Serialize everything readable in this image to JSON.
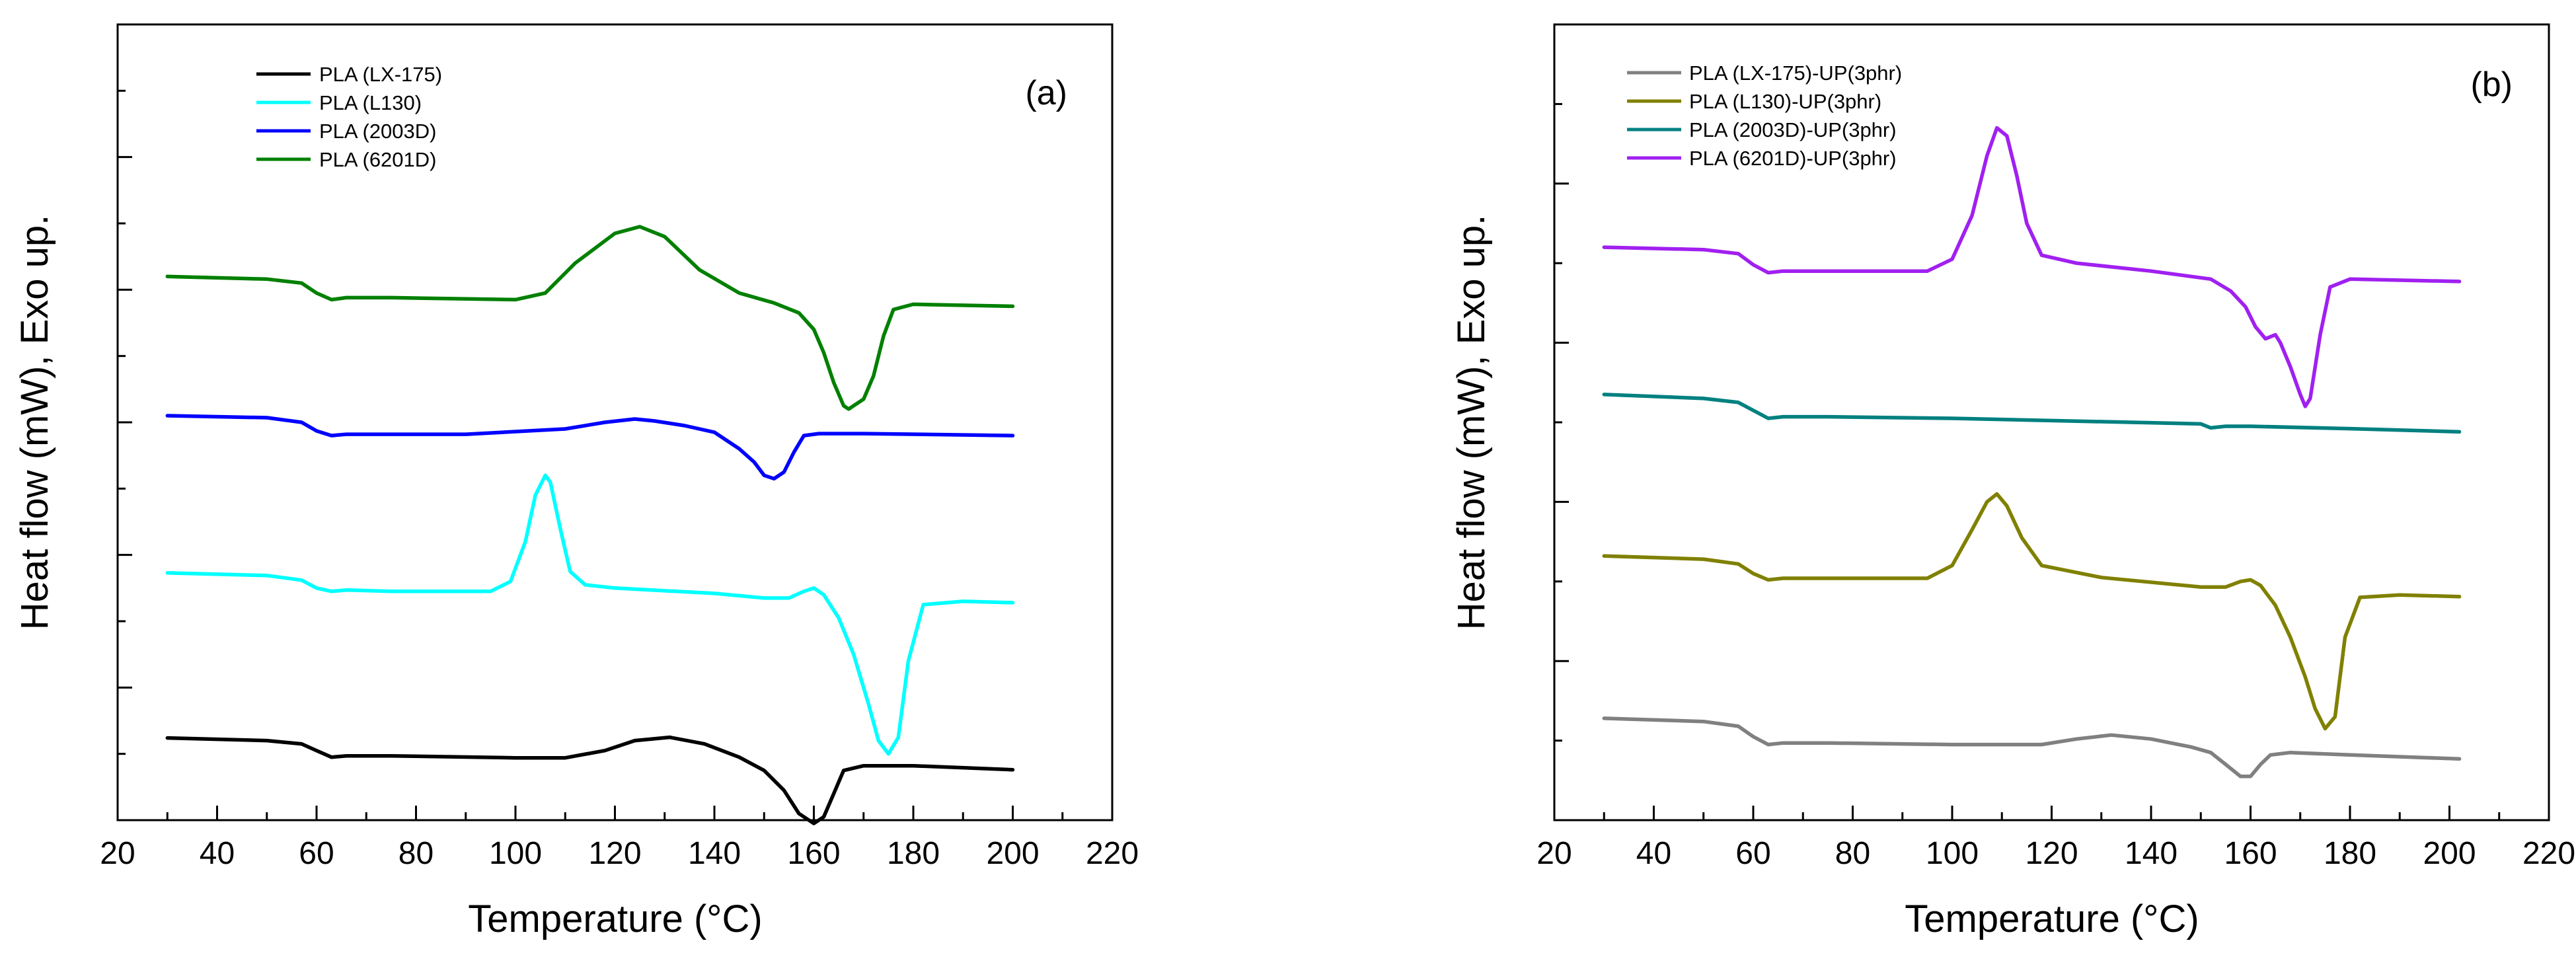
{
  "chart_data": [
    {
      "type": "line",
      "panel_label": "(a)",
      "xlabel": "Temperature (°C)",
      "ylabel": "Heat flow (mW), Exo up.",
      "xlim": [
        20,
        220
      ],
      "xticks": [
        "20",
        "40",
        "60",
        "80",
        "100",
        "120",
        "140",
        "160",
        "180",
        "200",
        "220"
      ],
      "ylim": [
        0,
        12
      ],
      "y_tick_labels": "none",
      "legend_position": "top-left",
      "series": [
        {
          "name": "PLA (LX-175)",
          "color": "#000000",
          "x": [
            30,
            50,
            57,
            60,
            63,
            66,
            75,
            100,
            110,
            118,
            124,
            131,
            138,
            145,
            150,
            154,
            157,
            160,
            162,
            164,
            166,
            170,
            180,
            200
          ],
          "y": [
            1.24,
            1.2,
            1.15,
            1.05,
            0.95,
            0.97,
            0.97,
            0.94,
            0.94,
            1.05,
            1.2,
            1.25,
            1.15,
            0.95,
            0.75,
            0.45,
            0.1,
            -0.05,
            0.05,
            0.4,
            0.75,
            0.82,
            0.82,
            0.76
          ]
        },
        {
          "name": "PLA (L130)",
          "color": "#00FFFF",
          "x": [
            30,
            50,
            57,
            60,
            63,
            66,
            75,
            95,
            99,
            102,
            104,
            106,
            107,
            109,
            111,
            114,
            120,
            140,
            150,
            155,
            158,
            160,
            162,
            165,
            168,
            171,
            173,
            175,
            177,
            179,
            182,
            190,
            200
          ],
          "y": [
            3.73,
            3.69,
            3.62,
            3.5,
            3.45,
            3.47,
            3.45,
            3.45,
            3.6,
            4.2,
            4.9,
            5.2,
            5.1,
            4.4,
            3.75,
            3.55,
            3.5,
            3.42,
            3.35,
            3.35,
            3.45,
            3.5,
            3.4,
            3.05,
            2.5,
            1.75,
            1.2,
            1.0,
            1.25,
            2.4,
            3.25,
            3.3,
            3.28
          ]
        },
        {
          "name": "PLA (2003D)",
          "color": "#0000FF",
          "x": [
            30,
            50,
            57,
            60,
            63,
            66,
            75,
            90,
            110,
            118,
            124,
            128,
            134,
            140,
            145,
            148,
            150,
            152,
            154,
            156,
            158,
            161,
            170,
            200
          ],
          "y": [
            6.1,
            6.07,
            6.0,
            5.87,
            5.8,
            5.82,
            5.82,
            5.82,
            5.9,
            6.0,
            6.05,
            6.02,
            5.95,
            5.85,
            5.6,
            5.4,
            5.2,
            5.15,
            5.25,
            5.55,
            5.8,
            5.83,
            5.83,
            5.8
          ]
        },
        {
          "name": "PLA (6201D)",
          "color": "#008000",
          "x": [
            30,
            50,
            57,
            60,
            63,
            66,
            75,
            100,
            106,
            112,
            120,
            125,
            130,
            137,
            145,
            152,
            157,
            160,
            162,
            164,
            166,
            167,
            168,
            170,
            172,
            174,
            176,
            180,
            200
          ],
          "y": [
            8.2,
            8.16,
            8.1,
            7.95,
            7.85,
            7.88,
            7.88,
            7.85,
            7.95,
            8.4,
            8.85,
            8.95,
            8.8,
            8.3,
            7.95,
            7.8,
            7.65,
            7.4,
            7.05,
            6.6,
            6.25,
            6.2,
            6.25,
            6.35,
            6.7,
            7.3,
            7.7,
            7.78,
            7.75
          ]
        }
      ]
    },
    {
      "type": "line",
      "panel_label": "(b)",
      "xlabel": "Temperature (°C)",
      "ylabel": "Heat flow (mW), Exo up.",
      "xlim": [
        20,
        220
      ],
      "xticks": [
        "20",
        "40",
        "60",
        "80",
        "100",
        "120",
        "140",
        "160",
        "180",
        "200",
        "220"
      ],
      "ylim": [
        0,
        10
      ],
      "y_tick_labels": "none",
      "legend_position": "top-left",
      "series": [
        {
          "name": "PLA (LX-175)-UP(3phr)",
          "color": "#808080",
          "x": [
            30,
            50,
            57,
            60,
            63,
            66,
            75,
            100,
            118,
            125,
            132,
            140,
            148,
            152,
            155,
            158,
            160,
            162,
            164,
            168,
            180,
            202
          ],
          "y": [
            1.28,
            1.24,
            1.18,
            1.05,
            0.95,
            0.97,
            0.97,
            0.95,
            0.95,
            1.02,
            1.07,
            1.02,
            0.92,
            0.85,
            0.7,
            0.55,
            0.55,
            0.7,
            0.82,
            0.85,
            0.82,
            0.77
          ]
        },
        {
          "name": "PLA (L130)-UP(3phr)",
          "color": "#808000",
          "x": [
            30,
            50,
            57,
            60,
            63,
            66,
            75,
            95,
            100,
            104,
            107,
            109,
            111,
            114,
            118,
            130,
            150,
            155,
            158,
            160,
            162,
            165,
            168,
            171,
            173,
            175,
            177,
            179,
            182,
            190,
            202
          ],
          "y": [
            3.32,
            3.28,
            3.22,
            3.1,
            3.02,
            3.04,
            3.04,
            3.04,
            3.2,
            3.65,
            4.0,
            4.1,
            3.95,
            3.55,
            3.2,
            3.05,
            2.93,
            2.93,
            3.0,
            3.02,
            2.95,
            2.7,
            2.3,
            1.8,
            1.4,
            1.15,
            1.3,
            2.3,
            2.8,
            2.83,
            2.81
          ]
        },
        {
          "name": "PLA (2003D)-UP(3phr)",
          "color": "#008080",
          "x": [
            30,
            50,
            57,
            60,
            63,
            66,
            75,
            100,
            150,
            152,
            155,
            160,
            180,
            202
          ],
          "y": [
            5.35,
            5.3,
            5.25,
            5.15,
            5.05,
            5.07,
            5.07,
            5.05,
            4.98,
            4.93,
            4.95,
            4.95,
            4.92,
            4.88
          ]
        },
        {
          "name": "PLA (6201D)-UP(3phr)",
          "color": "#A020F0",
          "x": [
            30,
            50,
            57,
            60,
            63,
            66,
            75,
            95,
            100,
            104,
            107,
            109,
            111,
            113,
            115,
            118,
            125,
            140,
            152,
            156,
            159,
            161,
            163,
            165,
            166,
            168,
            170,
            171,
            172,
            174,
            176,
            180,
            202
          ],
          "y": [
            7.2,
            7.17,
            7.12,
            6.98,
            6.88,
            6.9,
            6.9,
            6.9,
            7.05,
            7.6,
            8.35,
            8.7,
            8.6,
            8.1,
            7.5,
            7.1,
            7.0,
            6.9,
            6.8,
            6.65,
            6.45,
            6.2,
            6.05,
            6.1,
            6.0,
            5.7,
            5.35,
            5.2,
            5.3,
            6.1,
            6.7,
            6.8,
            6.77
          ]
        }
      ]
    }
  ]
}
